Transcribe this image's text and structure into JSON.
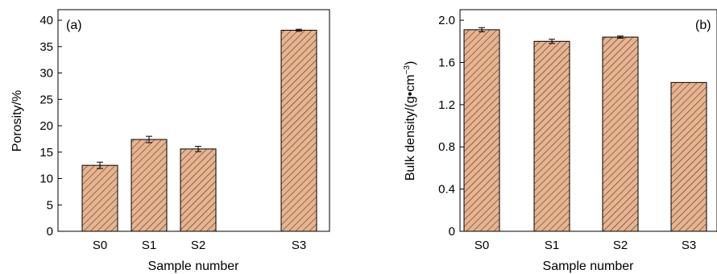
{
  "chart_data": [
    {
      "type": "bar",
      "panel_label": "(a)",
      "categories": [
        "S0",
        "S1",
        "S2",
        "S3"
      ],
      "values": [
        12.5,
        17.4,
        15.6,
        38.1
      ],
      "errors": [
        0.6,
        0.6,
        0.5,
        0.2
      ],
      "xlabel": "Sample number",
      "ylabel": "Porosity/%",
      "ylim": [
        0,
        42
      ],
      "yticks": [
        "0",
        "5",
        "10",
        "15",
        "20",
        "25",
        "30",
        "35",
        "40"
      ],
      "ytick_values": [
        0,
        5,
        10,
        15,
        20,
        25,
        30,
        35,
        40
      ],
      "bar_color": "#e8b48f",
      "hatch_color": "#3a2a20",
      "grid": false
    },
    {
      "type": "bar",
      "panel_label": "(b)",
      "categories": [
        "S0",
        "S1",
        "S2",
        "S3"
      ],
      "values": [
        1.91,
        1.8,
        1.84,
        1.41
      ],
      "errors": [
        0.02,
        0.02,
        0.01,
        0.0
      ],
      "xlabel": "Sample number",
      "ylabel_main": "Bulk density/(g•cm",
      "ylabel_sup": "−3",
      "ylabel_end": ")",
      "ylim": [
        0,
        2.1
      ],
      "yticks": [
        "0",
        "0.4",
        "0.8",
        "1.2",
        "1.6",
        "2.0"
      ],
      "ytick_values": [
        0,
        0.4,
        0.8,
        1.2,
        1.6,
        2.0
      ],
      "bar_color": "#e8b48f",
      "hatch_color": "#3a2a20",
      "grid": false
    }
  ]
}
